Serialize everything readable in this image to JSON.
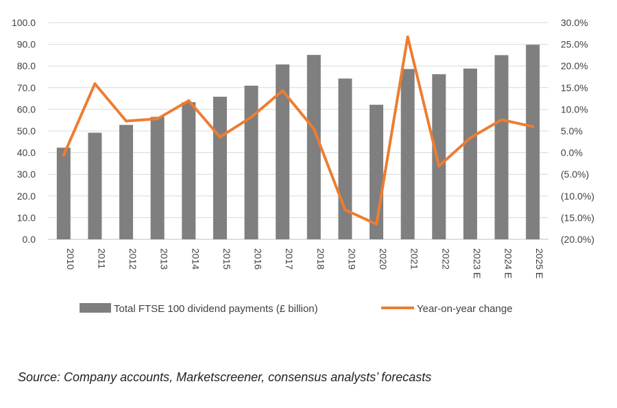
{
  "chart_data": {
    "type": "bar+line",
    "categories": [
      "2010",
      "2011",
      "2012",
      "2013",
      "2014",
      "2015",
      "2016",
      "2017",
      "2018",
      "2019",
      "2020",
      "2021",
      "2022",
      "2023 E",
      "2024 E",
      "2025 E"
    ],
    "series": [
      {
        "name": "Total FTSE 100 dividend payments (£ billion)",
        "type": "bar",
        "axis": "left",
        "color": "#7f7f7f",
        "values": [
          42.3,
          49.2,
          52.8,
          56.5,
          63.3,
          65.8,
          70.9,
          80.7,
          85.1,
          74.2,
          62.1,
          78.6,
          76.2,
          78.8,
          85.0,
          89.8
        ]
      },
      {
        "name": "Year-on-year change",
        "type": "line",
        "axis": "right",
        "color": "#ed7d31",
        "values": [
          -0.6,
          15.9,
          7.3,
          7.8,
          12.0,
          3.6,
          8.2,
          14.3,
          5.5,
          -13.2,
          -16.5,
          26.7,
          -3.1,
          3.4,
          7.6,
          6.0
        ]
      }
    ],
    "left_axis": {
      "min": 0,
      "max": 100,
      "step": 10,
      "tick_labels": [
        "0.0",
        "10.0",
        "20.0",
        "30.0",
        "40.0",
        "50.0",
        "60.0",
        "70.0",
        "80.0",
        "90.0",
        "100.0"
      ]
    },
    "right_axis": {
      "min": -20,
      "max": 30,
      "step": 5,
      "tick_labels": [
        "(20.0%)",
        "(15.0%)",
        "(10.0%)",
        "(5.0%)",
        "0.0%",
        "5.0%",
        "10.0%",
        "15.0%",
        "20.0%",
        "25.0%",
        "30.0%"
      ]
    },
    "grid": true,
    "legend_position": "bottom",
    "legend": [
      {
        "label": "Total FTSE 100 dividend payments (£ billion)",
        "kind": "bar",
        "color": "#7f7f7f"
      },
      {
        "label": "Year-on-year change",
        "kind": "line",
        "color": "#ed7d31"
      }
    ]
  },
  "source_note": "Source: Company accounts, Marketscreener, consensus analysts’ forecasts"
}
